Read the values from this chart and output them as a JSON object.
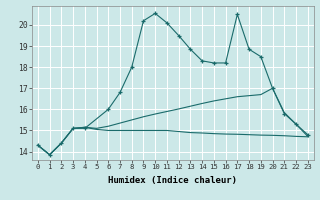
{
  "xlabel": "Humidex (Indice chaleur)",
  "bg_color": "#cce8e8",
  "grid_color": "#ffffff",
  "line_color": "#1a6b6b",
  "xlim": [
    -0.5,
    23.5
  ],
  "ylim": [
    13.6,
    20.9
  ],
  "xticks": [
    0,
    1,
    2,
    3,
    4,
    5,
    6,
    7,
    8,
    9,
    10,
    11,
    12,
    13,
    14,
    15,
    16,
    17,
    18,
    19,
    20,
    21,
    22,
    23
  ],
  "yticks": [
    14,
    15,
    16,
    17,
    18,
    19,
    20
  ],
  "series1_y": [
    14.3,
    13.85,
    14.4,
    15.1,
    15.1,
    16.0,
    16.8,
    18.0,
    20.2,
    20.55,
    20.1,
    19.5,
    18.85,
    18.3,
    18.2,
    18.2,
    20.5,
    18.85,
    18.5,
    17.0,
    15.8,
    15.3,
    14.8
  ],
  "series1_x": [
    0,
    1,
    2,
    3,
    4,
    6,
    7,
    8,
    9,
    10,
    11,
    12,
    13,
    14,
    15,
    16,
    17,
    18,
    19,
    20,
    21,
    22,
    23
  ],
  "series2_y": [
    14.3,
    13.85,
    14.4,
    15.1,
    15.15,
    15.05,
    15.0,
    15.0,
    15.0,
    15.0,
    15.0,
    15.0,
    14.95,
    14.9,
    14.88,
    14.85,
    14.83,
    14.82,
    14.8,
    14.78,
    14.77,
    14.75,
    14.72,
    14.7
  ],
  "series2_x": [
    0,
    1,
    2,
    3,
    4,
    5,
    6,
    7,
    8,
    9,
    10,
    11,
    12,
    13,
    14,
    15,
    16,
    17,
    18,
    19,
    20,
    21,
    22,
    23
  ],
  "series3_y": [
    14.3,
    13.85,
    14.4,
    15.1,
    15.15,
    15.1,
    15.2,
    15.35,
    15.5,
    15.65,
    15.78,
    15.9,
    16.02,
    16.15,
    16.28,
    16.4,
    16.5,
    16.6,
    16.65,
    16.7,
    17.0,
    15.85,
    15.3,
    14.72
  ],
  "series3_x": [
    0,
    1,
    2,
    3,
    4,
    5,
    6,
    7,
    8,
    9,
    10,
    11,
    12,
    13,
    14,
    15,
    16,
    17,
    18,
    19,
    20,
    21,
    22,
    23
  ]
}
